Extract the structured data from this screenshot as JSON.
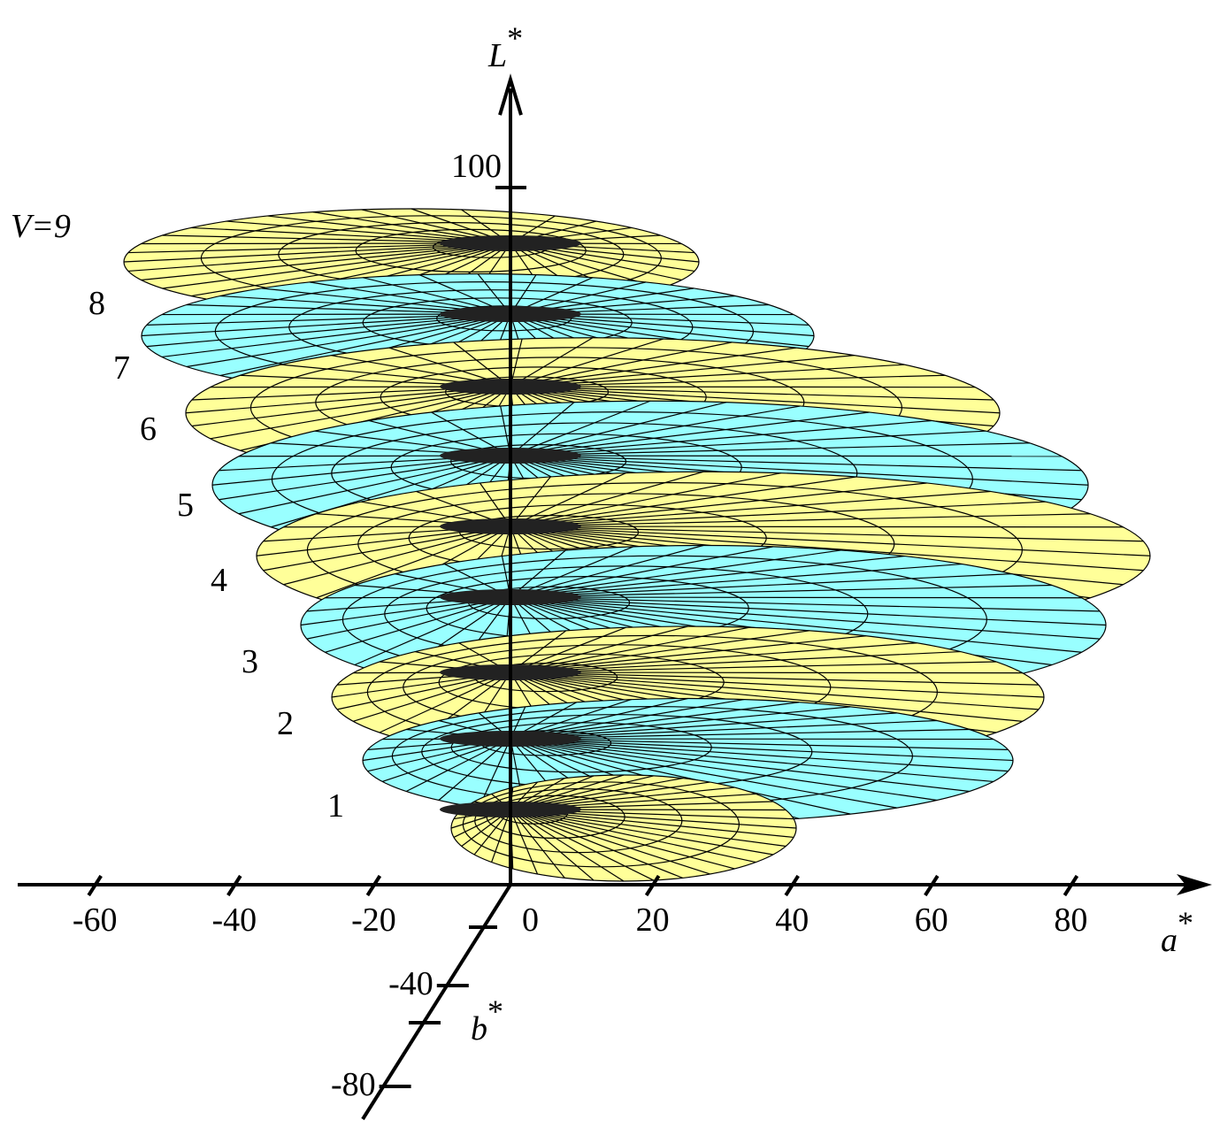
{
  "axes": {
    "L": {
      "name": "L",
      "mark": "*",
      "ticks": [
        100
      ]
    },
    "a": {
      "name": "a",
      "mark": "*",
      "ticks": [
        -60,
        -40,
        -20,
        0,
        20,
        40,
        60,
        80
      ]
    },
    "b": {
      "name": "b",
      "mark": "*",
      "ticks": [
        -40,
        -80
      ]
    }
  },
  "levels": [
    "V=9",
    "8",
    "7",
    "6",
    "5",
    "4",
    "3",
    "2",
    "1"
  ]
}
